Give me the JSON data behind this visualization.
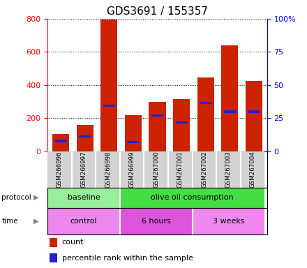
{
  "title": "GDS3691 / 155357",
  "samples": [
    "GSM266996",
    "GSM266997",
    "GSM266998",
    "GSM266999",
    "GSM267000",
    "GSM267001",
    "GSM267002",
    "GSM267003",
    "GSM267004"
  ],
  "count_values": [
    105,
    158,
    795,
    220,
    300,
    315,
    448,
    638,
    425
  ],
  "percentile_bottom": [
    55,
    82,
    268,
    52,
    210,
    168,
    285,
    230,
    230
  ],
  "percentile_top": [
    70,
    95,
    282,
    65,
    222,
    180,
    300,
    248,
    248
  ],
  "bar_color": "#cc2200",
  "percentile_color": "#2222cc",
  "left_ylim": [
    0,
    800
  ],
  "right_ylim": [
    0,
    100
  ],
  "left_yticks": [
    0,
    200,
    400,
    600,
    800
  ],
  "right_yticks": [
    0,
    25,
    50,
    75,
    100
  ],
  "right_yticklabels": [
    "0",
    "25",
    "50",
    "75",
    "100%"
  ],
  "protocol_groups": [
    {
      "label": "baseline",
      "start": 0,
      "end": 3,
      "color": "#99ee99"
    },
    {
      "label": "olive oil consumption",
      "start": 3,
      "end": 9,
      "color": "#44dd44"
    }
  ],
  "time_groups": [
    {
      "label": "control",
      "start": 0,
      "end": 3,
      "color": "#ee88ee"
    },
    {
      "label": "6 hours",
      "start": 3,
      "end": 6,
      "color": "#dd55dd"
    },
    {
      "label": "3 weeks",
      "start": 6,
      "end": 9,
      "color": "#ee88ee"
    }
  ],
  "legend_count_label": "count",
  "legend_percentile_label": "percentile rank within the sample",
  "bar_width": 0.7,
  "title_fontsize": 11,
  "tick_fontsize": 8,
  "background_color": "#ffffff"
}
